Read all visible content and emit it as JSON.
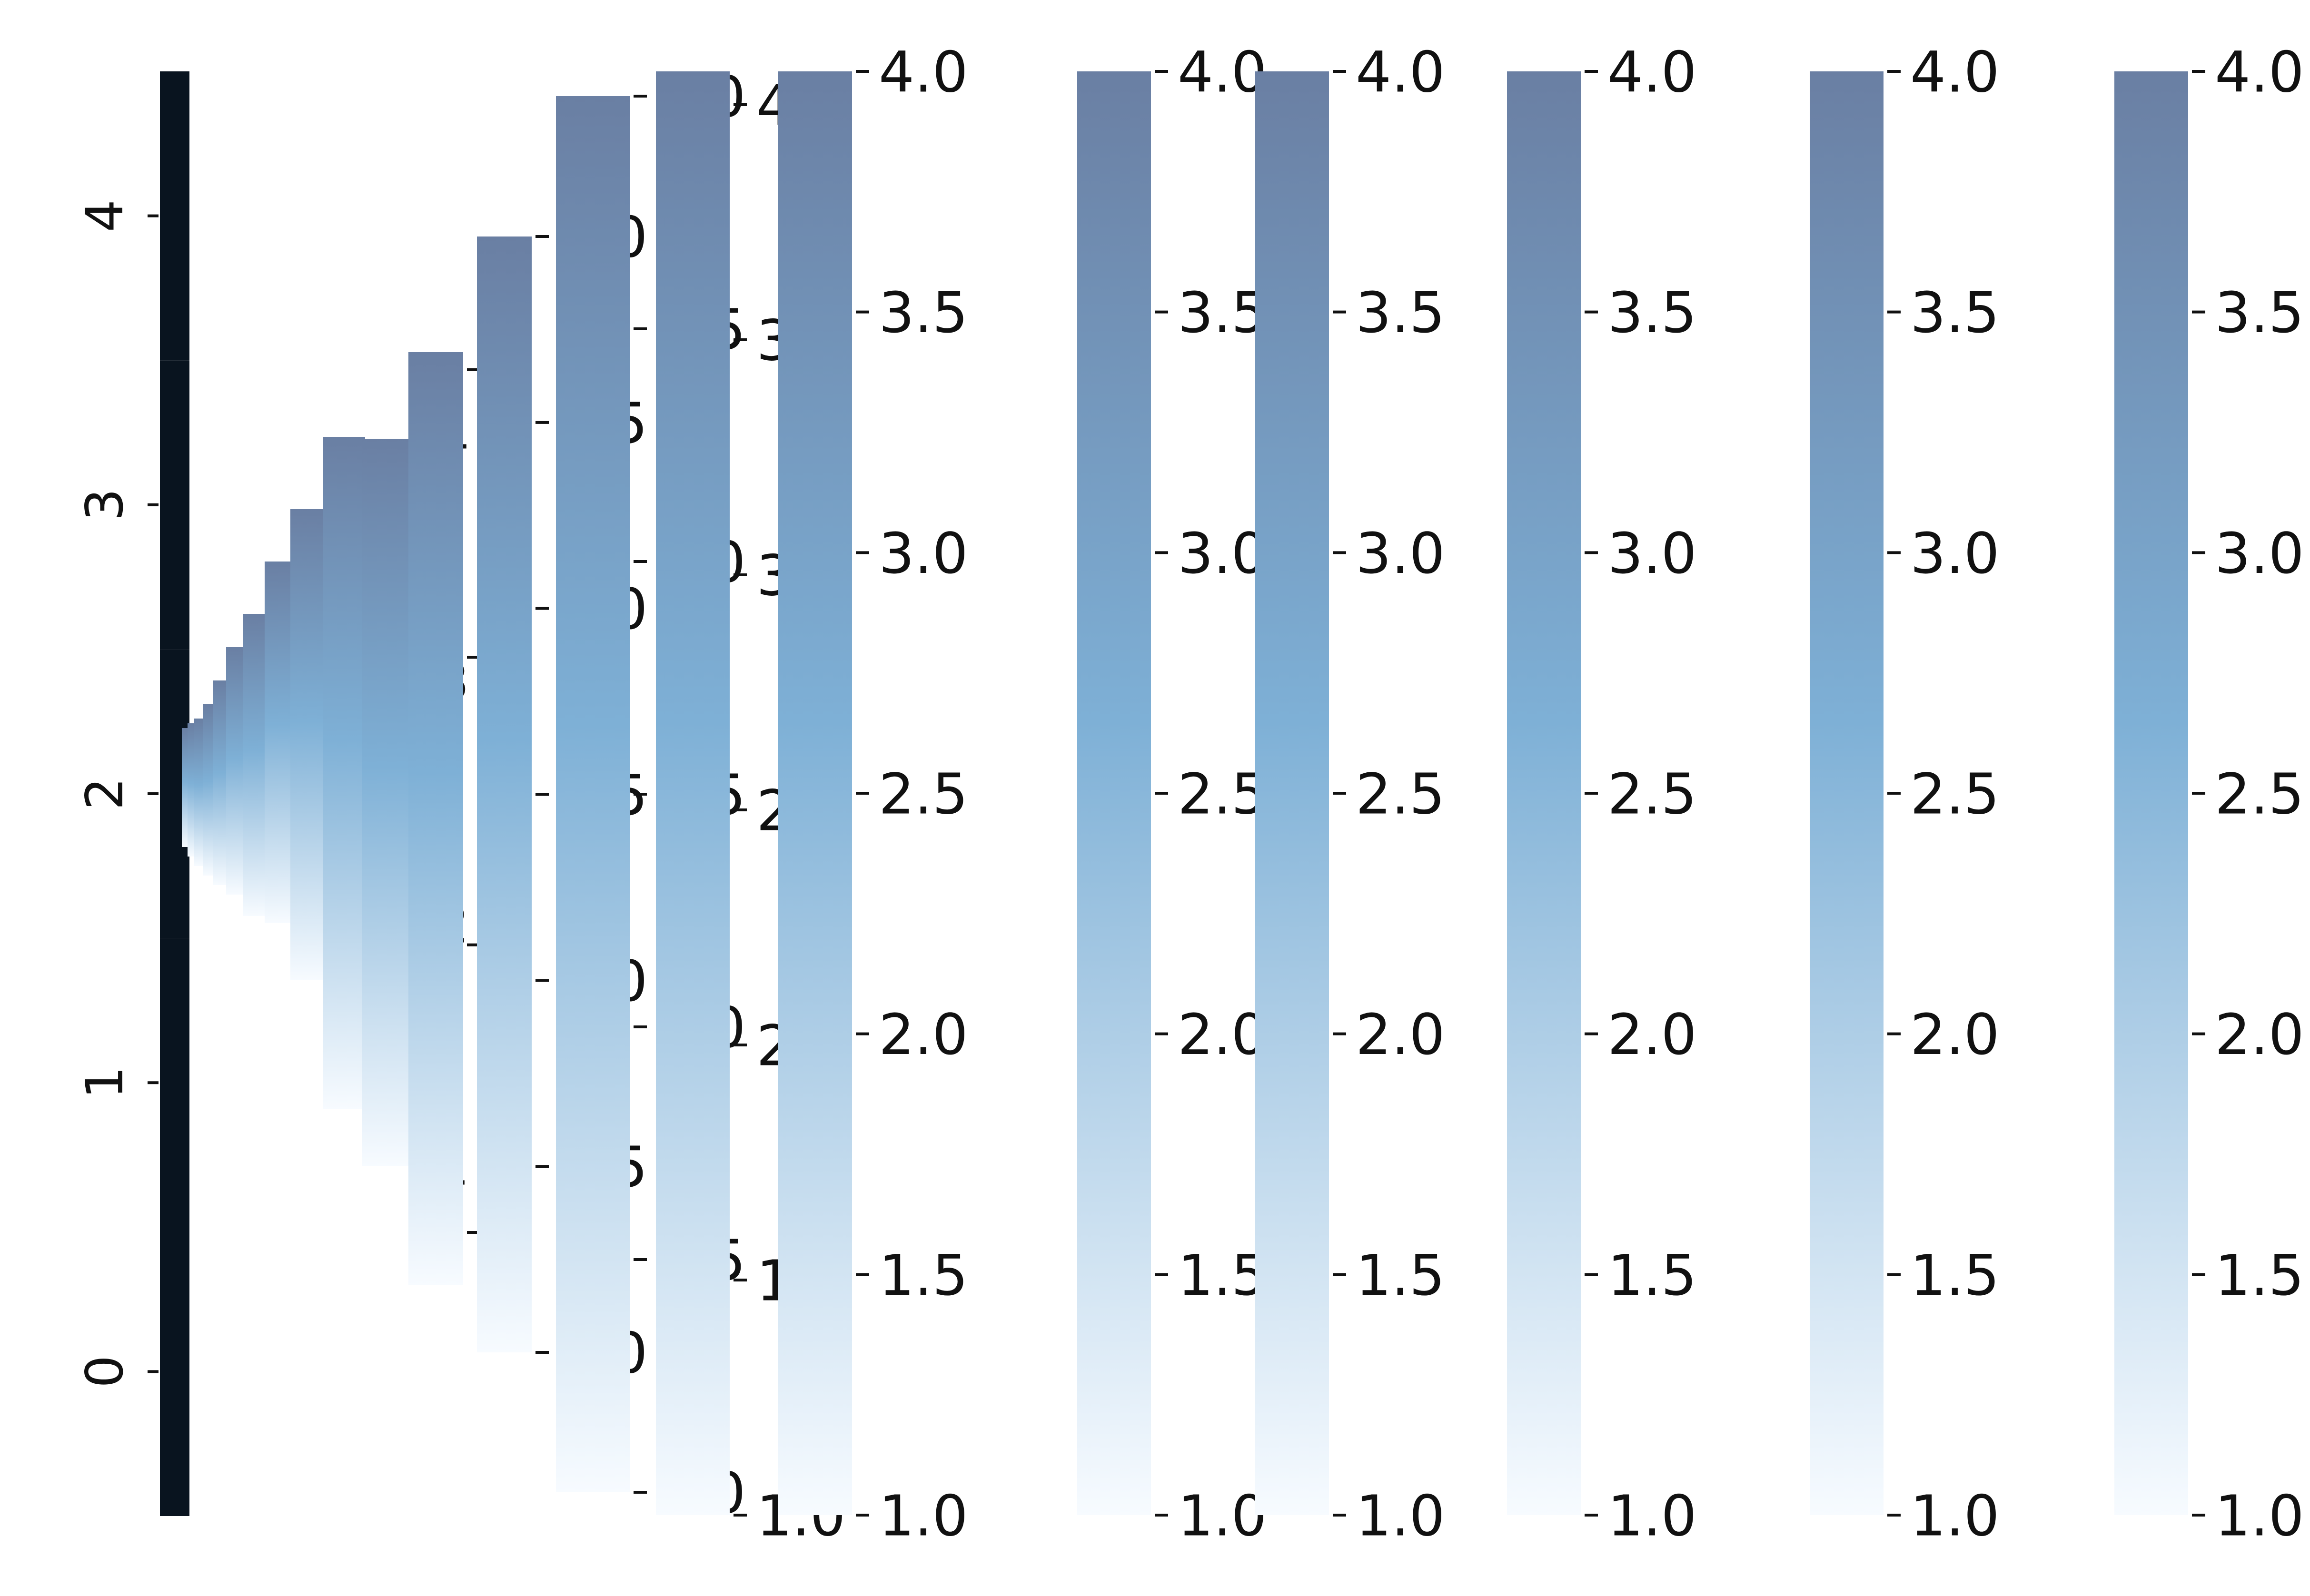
{
  "chart_data": {
    "type": "heatmap",
    "title": "",
    "xlabel": "",
    "ylabel": "",
    "heatmap_rows": [
      "0",
      "1",
      "2",
      "3",
      "4"
    ],
    "heatmap_ylim": [
      -0.5,
      4.5
    ],
    "colorbar_range": [
      1.0,
      4.0
    ],
    "colormap": {
      "low": "#f7fbff",
      "mid": "#7eb0d6",
      "high": "#6a7fa3"
    },
    "heatmap_fill": "#09141f",
    "grid": false,
    "legend": "none",
    "colorbars": [
      {
        "name": "",
        "ticks": [
          "1.0",
          "1.5",
          "2.0",
          "2.5",
          "3.0",
          "3.5",
          "4.0"
        ],
        "values": [
          1.0,
          1.5,
          2.0,
          2.5,
          3.0,
          3.5,
          4.0
        ]
      },
      {
        "name": "",
        "ticks": [
          "1.0",
          "1.5",
          "2.0",
          "2.5",
          "3.0",
          "3.5",
          "4.0"
        ],
        "values": [
          1.0,
          1.5,
          2.0,
          2.5,
          3.0,
          3.5,
          4.0
        ]
      },
      {
        "name": "",
        "ticks": [
          "1.0",
          "1.5",
          "2.0",
          "2.5",
          "3.0",
          "3.5",
          "4.0"
        ],
        "values": [
          1.0,
          1.5,
          2.0,
          2.5,
          3.0,
          3.5,
          4.0
        ]
      },
      {
        "name": "",
        "ticks": [
          "1.0",
          "1.5",
          "2.0",
          "2.5",
          "3.0",
          "3.5",
          "4.0"
        ],
        "values": [
          1.0,
          1.5,
          2.0,
          2.5,
          3.0,
          3.5,
          4.0
        ]
      },
      {
        "name": "",
        "ticks": [
          "1.0",
          "1.5",
          "2.0",
          "2.5",
          "3.0",
          "3.5",
          "4.0"
        ],
        "values": [
          1.0,
          1.5,
          2.0,
          2.5,
          3.0,
          3.5,
          4.0
        ]
      },
      {
        "name": "",
        "ticks": [
          "1.0",
          "1.5",
          "2.0",
          "2.5",
          "3.0",
          "3.5",
          "4.0"
        ],
        "values": [
          1.0,
          1.5,
          2.0,
          2.5,
          3.0,
          3.5,
          4.0
        ]
      },
      {
        "name": "",
        "ticks": [
          "1.0",
          "1.5",
          "2.0",
          "2.5",
          "3.0",
          "3.5",
          "4.0"
        ],
        "values": [
          1.0,
          1.5,
          2.0,
          2.5,
          3.0,
          3.5,
          4.0
        ]
      },
      {
        "name": "",
        "ticks": [
          "1.0",
          "1.5",
          "2.0",
          "2.5",
          "3.0",
          "3.5",
          "4.0"
        ],
        "values": [
          1.0,
          1.5,
          2.0,
          2.5,
          3.0,
          3.5,
          4.0
        ]
      },
      {
        "name": "",
        "ticks": [
          "1.0",
          "1.5",
          "2.0",
          "2.5",
          "3.0",
          "3.5",
          "4.0"
        ],
        "values": [
          1.0,
          1.5,
          2.0,
          2.5,
          3.0,
          3.5,
          4.0
        ]
      },
      {
        "name": "",
        "ticks": [
          "1",
          "2",
          "3",
          "4"
        ],
        "values": [
          1,
          2,
          3,
          4
        ]
      },
      {
        "name": "",
        "ticks": [
          "1",
          "2",
          "3",
          "4"
        ],
        "values": [
          1,
          2,
          3,
          4
        ]
      },
      {
        "name": "",
        "ticks": [
          "1",
          "2",
          "3",
          "4"
        ],
        "values": [
          1,
          2,
          3,
          4
        ]
      },
      {
        "name": "",
        "ticks": [
          "2",
          "3",
          "4"
        ],
        "values": [
          2,
          3,
          4
        ]
      },
      {
        "name": "",
        "ticks": [
          "2",
          "3",
          "4"
        ],
        "values": [
          2,
          3,
          4
        ]
      },
      {
        "name": "",
        "ticks": [
          "2",
          "4"
        ],
        "values": [
          2,
          4
        ]
      },
      {
        "name": "",
        "ticks": [
          "2",
          "4"
        ],
        "values": [
          2,
          4
        ]
      },
      {
        "name": "",
        "ticks": [
          "2",
          "4"
        ],
        "values": [
          2,
          4
        ]
      },
      {
        "name": "",
        "ticks": [
          "2",
          "4"
        ],
        "values": [
          2,
          4
        ]
      },
      {
        "name": "",
        "ticks": [
          "2",
          "4"
        ],
        "values": [
          2,
          4
        ]
      },
      {
        "name": "",
        "ticks": [
          "2",
          "4"
        ],
        "values": [
          2,
          4
        ]
      },
      {
        "name": "",
        "ticks": [
          "2",
          "4"
        ],
        "values": [
          2,
          4
        ]
      }
    ]
  }
}
